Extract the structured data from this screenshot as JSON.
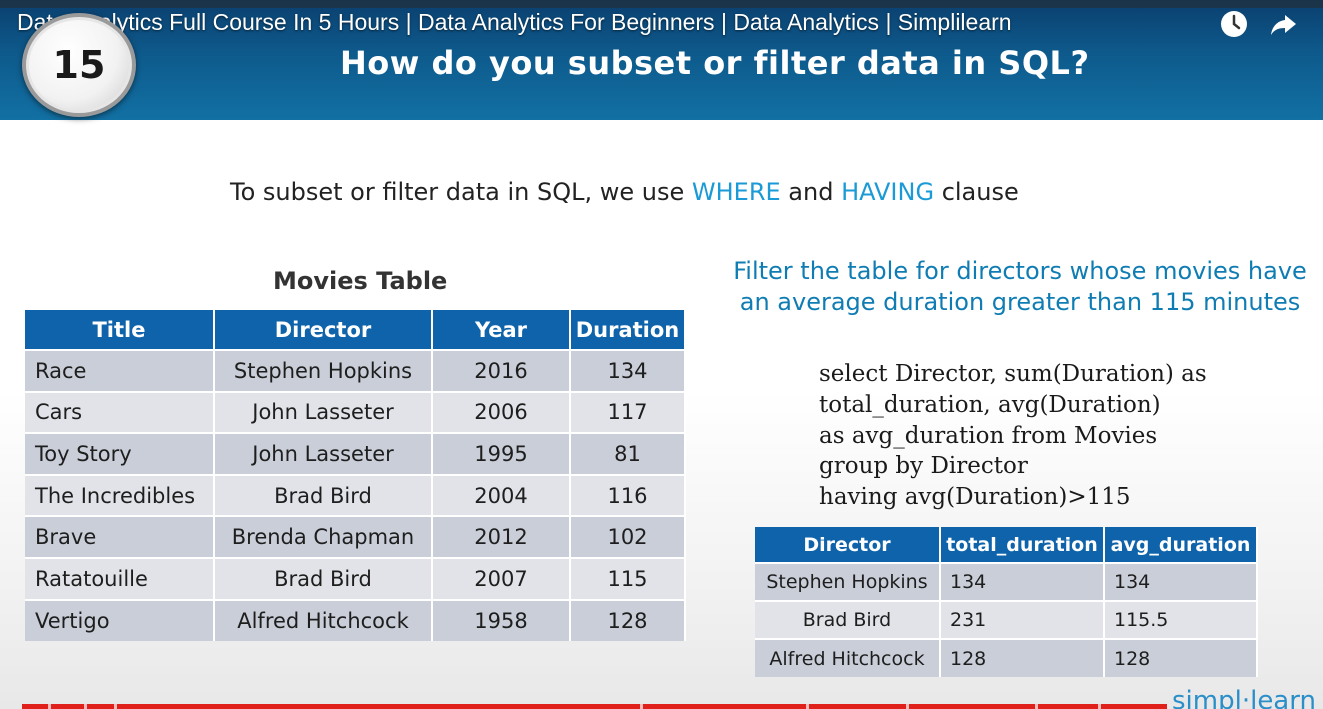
{
  "video": {
    "title": "Data Analytics Full Course In 5 Hours | Data Analytics For Beginners | Data Analytics | Simplilearn",
    "icons": [
      "clock-icon",
      "share-icon"
    ]
  },
  "slide": {
    "number": "15",
    "title": "How do you subset or filter data in SQL?",
    "intro": {
      "before": "To subset or filter data in SQL, we use ",
      "kw1": "WHERE",
      "middle": " and ",
      "kw2": "HAVING",
      "after": " clause"
    },
    "accent_color": "#1a9ad6",
    "header_color": "#0e63aa"
  },
  "movies": {
    "caption": "Movies Table",
    "headers": [
      "Title",
      "Director",
      "Year",
      "Duration"
    ],
    "rows": [
      [
        "Race",
        "Stephen Hopkins",
        "2016",
        "134"
      ],
      [
        "Cars",
        "John Lasseter",
        "2006",
        "117"
      ],
      [
        "Toy Story",
        "John Lasseter",
        "1995",
        "81"
      ],
      [
        "The Incredibles",
        "Brad Bird",
        "2004",
        "116"
      ],
      [
        "Brave",
        "Brenda Chapman",
        "2012",
        "102"
      ],
      [
        "Ratatouille",
        "Brad Bird",
        "2007",
        "115"
      ],
      [
        "Vertigo",
        "Alfred Hitchcock",
        "1958",
        "128"
      ]
    ]
  },
  "filter": {
    "heading": "Filter the table for directors whose movies have an average duration greater than 115 minutes",
    "sql_lines": [
      "select Director, sum(Duration) as",
      "total_duration, avg(Duration)",
      "as avg_duration from Movies",
      "group by Director",
      "having avg(Duration)>115"
    ]
  },
  "result": {
    "headers": [
      "Director",
      "total_duration",
      "avg_duration"
    ],
    "rows": [
      [
        "Stephen Hopkins",
        "134",
        "134"
      ],
      [
        "Brad Bird",
        "231",
        "115.5"
      ],
      [
        "Alfred Hitchcock",
        "128",
        "128"
      ]
    ]
  },
  "brand": "simpl·learn"
}
